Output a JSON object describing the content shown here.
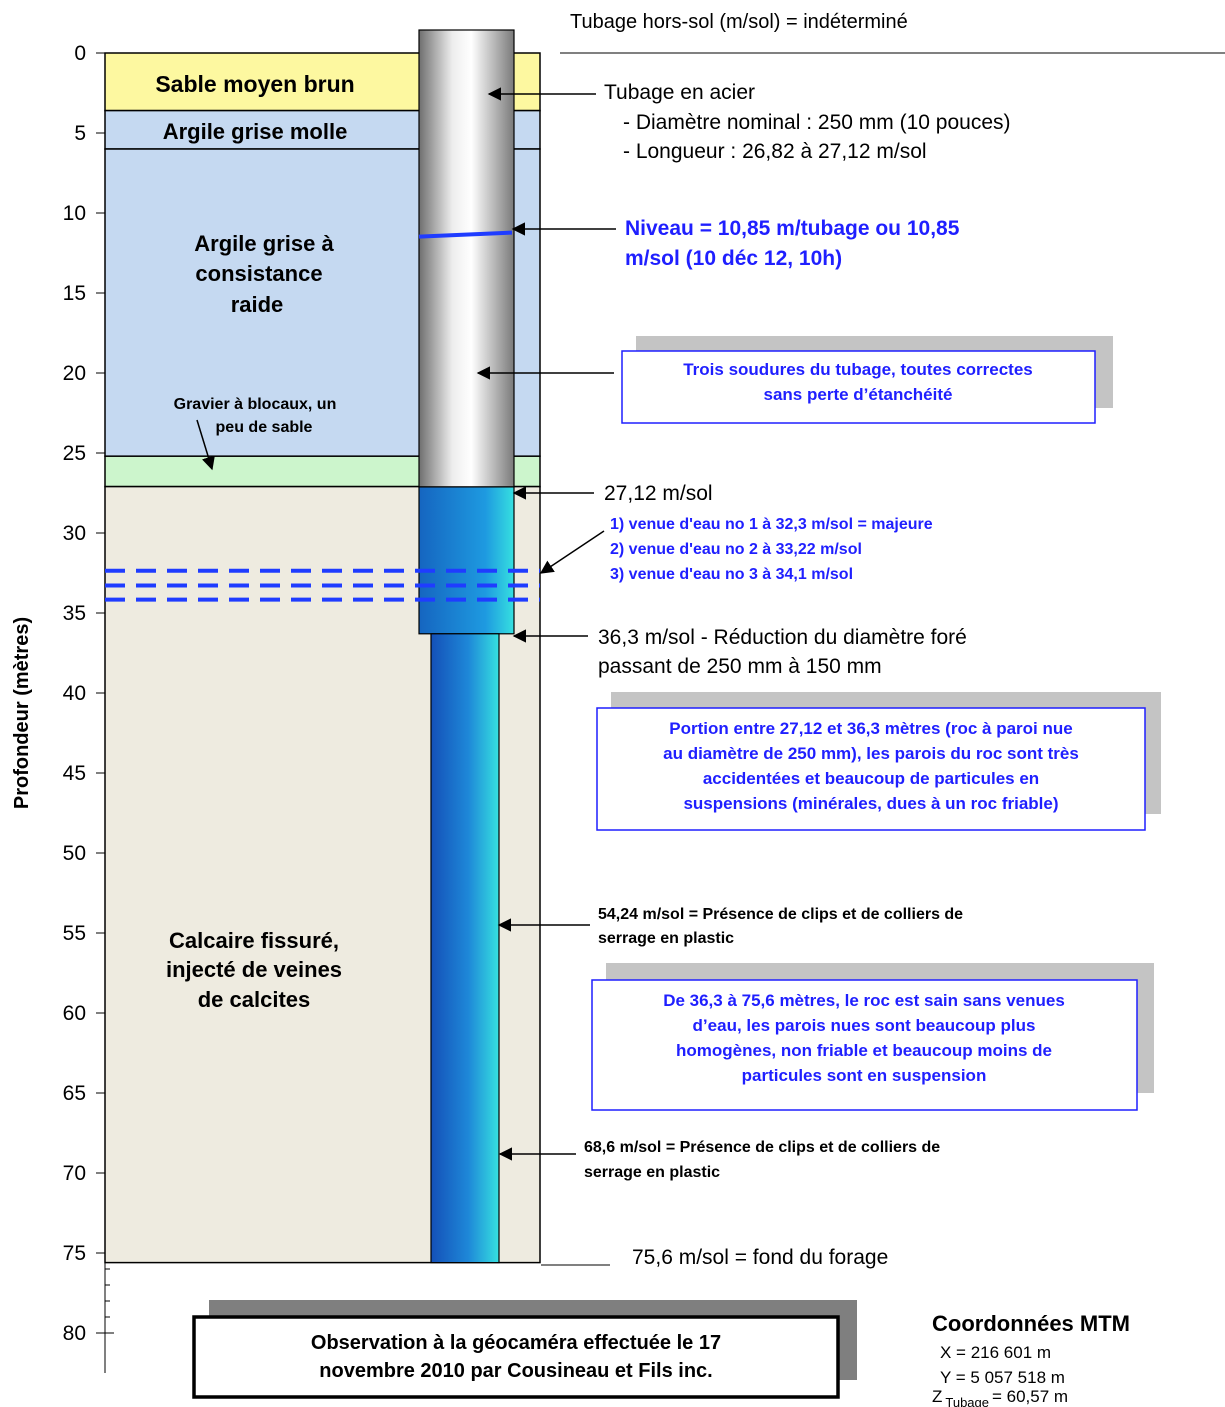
{
  "header": {
    "casing_above_ground": "Tubage hors-sol (m/sol) = indéterminé"
  },
  "axis": {
    "label": "Profondeur (mètres)",
    "ticks": [
      "0",
      "5",
      "10",
      "15",
      "20",
      "25",
      "30",
      "35",
      "40",
      "45",
      "50",
      "55",
      "60",
      "65",
      "70",
      "75",
      "80"
    ],
    "range_m": [
      0,
      80
    ]
  },
  "layers": [
    {
      "name_lines": [
        "Sable moyen brun"
      ],
      "top_m": 0,
      "bottom_m": 3.6,
      "color": "#fdf8a0"
    },
    {
      "name_lines": [
        "Argile grise molle"
      ],
      "top_m": 3.6,
      "bottom_m": 6.0,
      "color": "#c5d9f1"
    },
    {
      "name_lines": [
        "Argile grise à",
        "consistance",
        "raide"
      ],
      "top_m": 6.0,
      "bottom_m": 25.2,
      "color": "#c5d9f1"
    },
    {
      "name_lines": [
        "Gravier à blocaux, un",
        "peu de sable"
      ],
      "top_m": 25.2,
      "bottom_m": 27.1,
      "color": "#ccf5cc"
    },
    {
      "name_lines": [
        "Calcaire fissuré,",
        "injecté de veines",
        "de calcites"
      ],
      "top_m": 27.1,
      "bottom_m": 75.6,
      "color": "#eeebe0"
    }
  ],
  "well": {
    "steel_casing_bottom_m": 27.12,
    "open_hole_250_bottom_m": 36.3,
    "open_hole_150_bottom_m": 75.6,
    "water_level_m": 10.85,
    "water_inflows_m": [
      32.3,
      33.22,
      34.1
    ]
  },
  "annotations": {
    "casing_title": "Tubage en acier",
    "casing_diameter": "- Diamètre nominal : 250 mm (10 pouces)",
    "casing_length": "- Longueur : 26,82 à 27,12 m/sol",
    "water_level_line1": "Niveau = 10,85 m/tubage ou 10,85",
    "water_level_line2": "m/sol (10 déc 12, 10h)",
    "welds_line1": "Trois soudures du tubage, toutes correctes",
    "welds_line2": "sans perte d’étanchéité",
    "casing_bottom": "27,12 m/sol",
    "inflow1": "1) venue d'eau no 1 à 32,3 m/sol = majeure",
    "inflow2": "2) venue d'eau no 2 à 33,22 m/sol",
    "inflow3": "3) venue d'eau no 3 à 34,1 m/sol",
    "reduction_line1": "36,3 m/sol - Réduction du diamètre foré",
    "reduction_line2": "passant de 250 mm à 150 mm",
    "portion_line1": "Portion entre 27,12 et 36,3 mètres (roc à paroi nue",
    "portion_line2": "au diamètre de 250 mm), les parois du roc sont très",
    "portion_line3": "accidentées et beaucoup de particules en",
    "portion_line4": "suspensions (minérales, dues à un roc friable)",
    "clips1_line1": "54,24 m/sol = Présence de clips et de colliers de",
    "clips1_line2": "serrage en plastic",
    "sound_line1": "De 36,3 à 75,6 mètres, le roc est sain sans venues",
    "sound_line2": "d’eau, les parois nues sont beaucoup plus",
    "sound_line3": "homogènes, non friable et beaucoup moins de",
    "sound_line4": "particules sont en suspension",
    "clips2_line1": "68,6 m/sol = Présence de clips et de colliers de",
    "clips2_line2": "serrage en plastic",
    "bottom": "75,6 m/sol = fond du forage"
  },
  "observation": {
    "line1": "Observation à la géocaméra effectuée le 17",
    "line2": "novembre 2010 par Cousineau et Fils  inc."
  },
  "coordinates": {
    "title": "Coordonnées MTM",
    "x": "X = 216 601 m",
    "y": "Y = 5 057 518 m",
    "z_prefix": "Z",
    "z_sub": "Tubage",
    "z_value": "= 60,57 m"
  }
}
